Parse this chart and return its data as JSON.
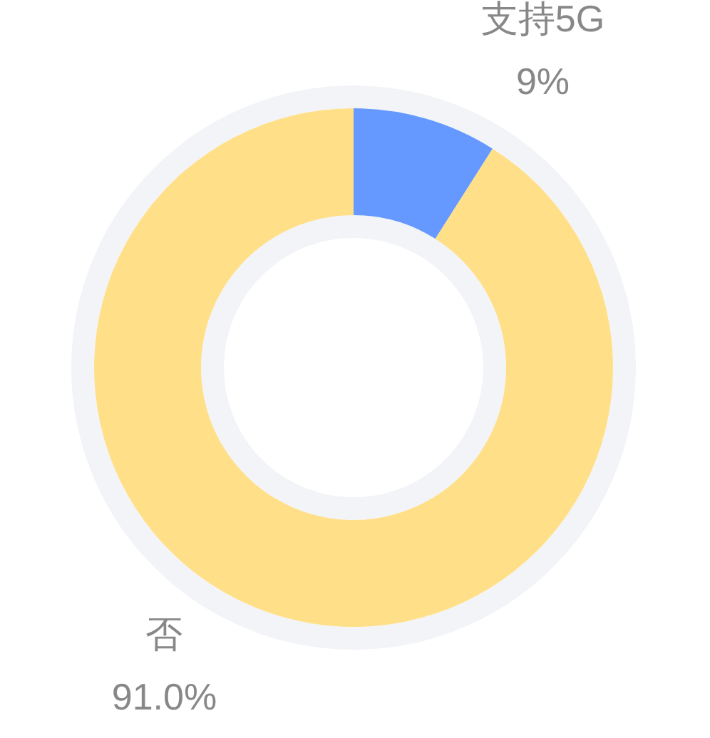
{
  "chart_data": {
    "type": "donut",
    "categories": [
      "支持5G",
      "否"
    ],
    "values": [
      9,
      91.0
    ],
    "colors": [
      "#6699ff",
      "#ffdf88"
    ],
    "value_labels": [
      "9%",
      "91.0%"
    ]
  }
}
